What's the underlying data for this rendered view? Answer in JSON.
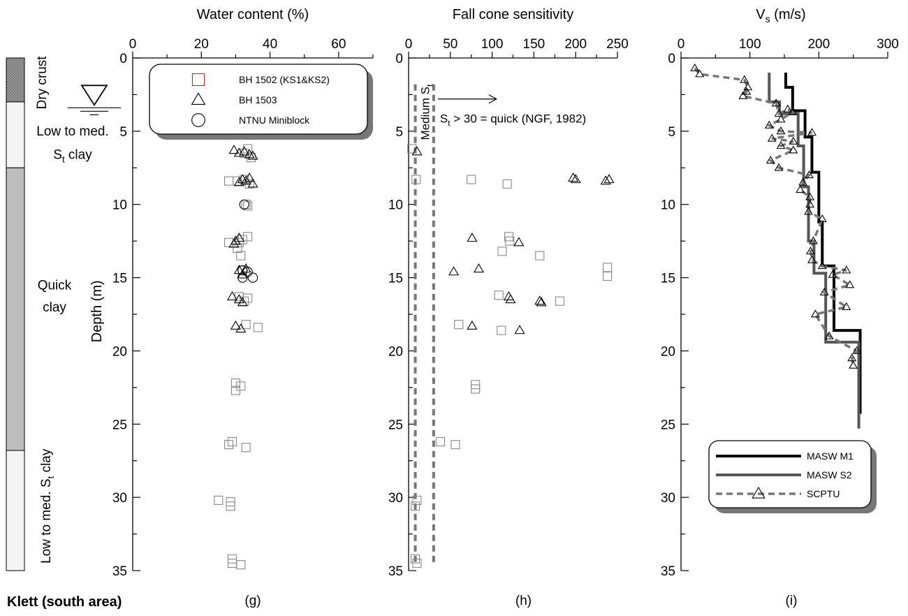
{
  "figure": {
    "site_label": "Klett (south area)",
    "layers": [
      {
        "label": "Dry crust",
        "top": 0,
        "bottom": 3,
        "fill": "#8a8a8a",
        "hatched": true
      },
      {
        "label": "Low to med. S_t clay",
        "top": 3,
        "bottom": 7.5,
        "fill": "#f4f4f4",
        "hatched": false
      },
      {
        "label": "Quick clay",
        "top": 7.5,
        "bottom": 26.8,
        "fill": "#bdbdbd",
        "hatched": false
      },
      {
        "label": "Low to med. S_t clay",
        "top": 26.8,
        "bottom": 35,
        "fill": "#f4f4f4",
        "hatched": false
      }
    ],
    "groundwater_depth": 3.4
  },
  "chart_data": [
    {
      "type": "scatter",
      "title": "Water content (%)",
      "ylabel": "Depth (m)",
      "caption": "(g)",
      "xlim": [
        0,
        70
      ],
      "ylim": [
        0,
        35
      ],
      "xticks": [
        0,
        20,
        40,
        60
      ],
      "yticks": [
        0,
        5,
        10,
        15,
        20,
        25,
        30,
        35
      ],
      "legend": {
        "position": "top",
        "entries": [
          {
            "label": "BH 1502 (KS1&KS2)",
            "marker": "square",
            "color": "#b03030"
          },
          {
            "label": "BH 1503",
            "marker": "triangle",
            "color": "#000000"
          },
          {
            "label": "NTNU Miniblock",
            "marker": "circle",
            "color": "#000000"
          }
        ]
      },
      "series": [
        {
          "name": "BH 1502 (KS1&KS2)",
          "marker": "square",
          "color": "#888888",
          "points": [
            [
              33.5,
              6.2
            ],
            [
              34.5,
              6.8
            ],
            [
              32.5,
              6.5
            ],
            [
              28,
              8.4
            ],
            [
              30.5,
              8.4
            ],
            [
              32.5,
              8.3
            ],
            [
              34,
              8.6
            ],
            [
              33,
              10
            ],
            [
              33.5,
              10.1
            ],
            [
              28,
              12.6
            ],
            [
              31,
              12.6
            ],
            [
              32,
              12.4
            ],
            [
              33.5,
              12.2
            ],
            [
              30.5,
              13
            ],
            [
              31.5,
              13.5
            ],
            [
              32,
              14.5
            ],
            [
              31,
              16.3
            ],
            [
              33.5,
              16.4
            ],
            [
              32.5,
              16.6
            ],
            [
              33,
              18.2
            ],
            [
              36.5,
              18.4
            ],
            [
              30,
              22.2
            ],
            [
              31.5,
              22.4
            ],
            [
              30,
              22.7
            ],
            [
              29,
              26.2
            ],
            [
              28,
              26.4
            ],
            [
              33,
              26.6
            ],
            [
              25,
              30.2
            ],
            [
              28.5,
              30.3
            ],
            [
              28.5,
              30.6
            ],
            [
              29,
              34.2
            ],
            [
              29,
              34.5
            ],
            [
              31.5,
              34.6
            ]
          ]
        },
        {
          "name": "BH 1503",
          "marker": "triangle",
          "color": "#000000",
          "points": [
            [
              29.5,
              6.3
            ],
            [
              31,
              6.5
            ],
            [
              32.5,
              6.4
            ],
            [
              34,
              6.6
            ],
            [
              35,
              6.7
            ],
            [
              32,
              8.3
            ],
            [
              31,
              8.5
            ],
            [
              33,
              8.4
            ],
            [
              34,
              8.2
            ],
            [
              35,
              8.6
            ],
            [
              30,
              12.5
            ],
            [
              31,
              12.3
            ],
            [
              29.5,
              12.7
            ],
            [
              31,
              14.5
            ],
            [
              32,
              14.8
            ],
            [
              33,
              14.4
            ],
            [
              29,
              16.3
            ],
            [
              31,
              16.5
            ],
            [
              32,
              16.7
            ],
            [
              30,
              18.3
            ],
            [
              31.5,
              18.5
            ]
          ]
        },
        {
          "name": "NTNU Miniblock",
          "marker": "circle",
          "color": "#000000",
          "points": [
            [
              32.5,
              10
            ],
            [
              32,
              14.5
            ],
            [
              33.5,
              14.6
            ],
            [
              32,
              15
            ],
            [
              35,
              15
            ]
          ]
        }
      ]
    },
    {
      "type": "scatter",
      "title": "Fall cone sensitivity",
      "caption": "(h)",
      "xlim": [
        0,
        250
      ],
      "ylim": [
        0,
        35
      ],
      "xticks": [
        0,
        50,
        100,
        150,
        200,
        250
      ],
      "yticks": [
        0,
        5,
        10,
        15,
        20,
        25,
        30,
        35
      ],
      "annotations": {
        "band_label": "Medium S_t",
        "band_x": [
          8,
          30
        ],
        "quick_text": "S_t > 30 = quick (NGF, 1982)"
      },
      "series": [
        {
          "name": "BH 1502 (KS1&KS2)",
          "marker": "square",
          "color": "#888888",
          "points": [
            [
              4,
              6.2
            ],
            [
              9,
              8.3
            ],
            [
              75,
              8.3
            ],
            [
              118,
              8.6
            ],
            [
              120,
              12.2
            ],
            [
              121,
              12.5
            ],
            [
              112,
              13.2
            ],
            [
              157,
              13.5
            ],
            [
              238,
              14.3
            ],
            [
              238,
              14.9
            ],
            [
              108,
              16.2
            ],
            [
              181,
              16.6
            ],
            [
              60,
              18.2
            ],
            [
              111,
              18.6
            ],
            [
              80,
              22.3
            ],
            [
              80,
              22.6
            ],
            [
              38,
              26.2
            ],
            [
              56,
              26.4
            ],
            [
              10,
              30.2
            ],
            [
              8,
              30.6
            ],
            [
              8,
              34.2
            ],
            [
              10,
              34.5
            ]
          ]
        },
        {
          "name": "BH 1503",
          "marker": "triangle",
          "color": "#000000",
          "points": [
            [
              10,
              6.4
            ],
            [
              197,
              8.2
            ],
            [
              200,
              8.3
            ],
            [
              236,
              8.4
            ],
            [
              240,
              8.3
            ],
            [
              76,
              12.3
            ],
            [
              132,
              12.6
            ],
            [
              54,
              14.6
            ],
            [
              84,
              14.4
            ],
            [
              120,
              16.3
            ],
            [
              122,
              16.5
            ],
            [
              157,
              16.6
            ],
            [
              159,
              16.7
            ],
            [
              76,
              18.3
            ],
            [
              133,
              18.6
            ]
          ]
        }
      ]
    },
    {
      "type": "line",
      "title": "V_s (m/s)",
      "caption": "(i)",
      "xlim": [
        0,
        300
      ],
      "ylim": [
        0,
        35
      ],
      "xticks": [
        0,
        100,
        200,
        300
      ],
      "yticks": [
        0,
        5,
        10,
        15,
        20,
        25,
        30,
        35
      ],
      "legend": {
        "position": "bottom-right",
        "entries": [
          {
            "label": "MASW M1",
            "style": "solid",
            "color": "#000000"
          },
          {
            "label": "MASW S2",
            "style": "solid",
            "color": "#555555"
          },
          {
            "label": "SCPTU",
            "style": "dashed-triangle",
            "color": "#777777"
          }
        ]
      },
      "series": [
        {
          "name": "MASW M1",
          "style": "solid",
          "color": "#000000",
          "points": [
            [
              152,
              1
            ],
            [
              152,
              2
            ],
            [
              162,
              2
            ],
            [
              162,
              3.6
            ],
            [
              180,
              3.6
            ],
            [
              180,
              5.4
            ],
            [
              190,
              5.4
            ],
            [
              190,
              7.8
            ],
            [
              200,
              7.8
            ],
            [
              200,
              11.2
            ],
            [
              205,
              11.2
            ],
            [
              205,
              14.2
            ],
            [
              222,
              14.2
            ],
            [
              222,
              18.6
            ],
            [
              260,
              18.6
            ],
            [
              260,
              24.3
            ]
          ]
        },
        {
          "name": "MASW S2",
          "style": "solid",
          "color": "#555555",
          "points": [
            [
              128,
              1
            ],
            [
              128,
              3
            ],
            [
              143,
              3
            ],
            [
              143,
              3.8
            ],
            [
              170,
              3.8
            ],
            [
              170,
              6
            ],
            [
              178,
              6
            ],
            [
              178,
              8.8
            ],
            [
              185,
              8.8
            ],
            [
              185,
              12.5
            ],
            [
              193,
              12.5
            ],
            [
              193,
              14.7
            ],
            [
              210,
              14.7
            ],
            [
              210,
              19.4
            ],
            [
              258,
              19.4
            ],
            [
              258,
              25.3
            ]
          ]
        },
        {
          "name": "SCPTU",
          "style": "dashed-triangle",
          "color": "#777777",
          "points": [
            [
              20,
              0.7
            ],
            [
              27,
              1.1
            ],
            [
              92,
              1.5
            ],
            [
              97,
              2
            ],
            [
              95,
              2.3
            ],
            [
              90,
              2.6
            ],
            [
              138,
              3.1
            ],
            [
              142,
              3.8
            ],
            [
              155,
              3.5
            ],
            [
              162,
              3.7
            ],
            [
              145,
              4.2
            ],
            [
              128,
              4.6
            ],
            [
              145,
              5
            ],
            [
              190,
              5.1
            ],
            [
              132,
              5.5
            ],
            [
              163,
              5.7
            ],
            [
              145,
              6
            ],
            [
              163,
              6.3
            ],
            [
              130,
              7
            ],
            [
              142,
              7.5
            ],
            [
              186,
              8
            ],
            [
              177,
              8.5
            ],
            [
              173,
              9
            ],
            [
              187,
              9.5
            ],
            [
              187,
              10
            ],
            [
              185,
              10.5
            ],
            [
              205,
              11
            ],
            [
              192,
              12.5
            ],
            [
              188,
              13.2
            ],
            [
              190,
              13.8
            ],
            [
              205,
              14.2
            ],
            [
              240,
              14.5
            ],
            [
              220,
              14.8
            ],
            [
              245,
              15.5
            ],
            [
              208,
              16
            ],
            [
              240,
              17
            ],
            [
              195,
              17.5
            ],
            [
              215,
              19
            ],
            [
              255,
              20
            ],
            [
              248,
              20.5
            ],
            [
              250,
              21
            ]
          ]
        }
      ]
    }
  ]
}
